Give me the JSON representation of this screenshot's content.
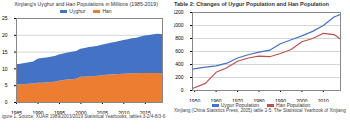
{
  "chart_data": [
    {
      "type": "area",
      "title": "Xinjiang's Uyghur and Han Populations in Millions (1985-2019)",
      "caption": "igure 1. Source: XUAR 1989/2003/2019 Statistical Yearbooks, tables 3-2/4-8/3-6",
      "stacked": true,
      "legend": "top",
      "grid": true,
      "x": [
        1985,
        1986,
        1987,
        1988,
        1989,
        1990,
        1991,
        1992,
        1993,
        1994,
        1995,
        1996,
        1997,
        1998,
        1999,
        2000,
        2001,
        2002,
        2003,
        2004,
        2005,
        2006,
        2007,
        2008,
        2009,
        2010,
        2011,
        2012,
        2013,
        2014,
        2015,
        2016,
        2017,
        2018,
        2019
      ],
      "series": [
        {
          "name": "Uyghur",
          "color": "#4472c4",
          "values": [
            6.04,
            6.16,
            6.29,
            6.41,
            6.55,
            7.2,
            7.31,
            7.43,
            7.56,
            7.68,
            7.78,
            7.92,
            8.02,
            8.14,
            8.22,
            8.35,
            8.53,
            8.7,
            8.82,
            8.91,
            9.07,
            9.24,
            9.45,
            9.65,
            9.87,
            10.02,
            10.2,
            10.38,
            10.51,
            10.86,
            11.14,
            11.3,
            11.5,
            11.68,
            11.73
          ]
        },
        {
          "name": "Han",
          "color": "#ed7d31",
          "values": [
            5.17,
            5.26,
            5.33,
            5.4,
            5.51,
            5.7,
            5.76,
            5.84,
            5.94,
            6.04,
            6.32,
            6.54,
            6.68,
            6.8,
            6.94,
            7.5,
            7.54,
            7.66,
            7.7,
            7.8,
            7.95,
            8.08,
            8.17,
            8.24,
            8.3,
            8.4,
            8.48,
            8.56,
            8.59,
            8.61,
            8.62,
            8.63,
            8.64,
            8.6,
            8.4
          ]
        }
      ],
      "xlim": [
        1985,
        2019
      ],
      "xticks": [
        1985,
        1990,
        1995,
        2000,
        2005,
        2010,
        2015
      ],
      "ylim": [
        0,
        25
      ],
      "yticks": [
        0,
        5,
        10,
        15,
        20,
        25
      ]
    },
    {
      "type": "line",
      "title": "Table 2: Changes of Uygur Population and Han Population",
      "caption": "Xinjiang (China Statistics Press, 2005) table 2-5. The Statistical Yearbook of Xinjiang",
      "legend": "bottom",
      "grid": true,
      "x": [
        1949,
        1955,
        1960,
        1965,
        1970,
        1975,
        1980,
        1985,
        1990,
        1995,
        2000,
        2005,
        2010,
        2015,
        2018
      ],
      "series": [
        {
          "name": "Uygur Population",
          "color": "#4472c4",
          "values": [
            330,
            360,
            380,
            420,
            500,
            550,
            590,
            620,
            720,
            780,
            840,
            910,
            1000,
            1130,
            1170
          ]
        },
        {
          "name": "Han Population",
          "color": "#c0504d",
          "values": [
            30,
            110,
            280,
            350,
            450,
            500,
            530,
            520,
            570,
            630,
            750,
            800,
            880,
            860,
            790
          ]
        }
      ],
      "xlim": [
        1949,
        2018
      ],
      "xticks": [
        1950,
        1960,
        1970,
        1980,
        1990,
        2000,
        2010
      ],
      "ylim": [
        0,
        1200
      ],
      "yticks": [
        0,
        200,
        400,
        600,
        800,
        1000,
        1200
      ]
    }
  ]
}
